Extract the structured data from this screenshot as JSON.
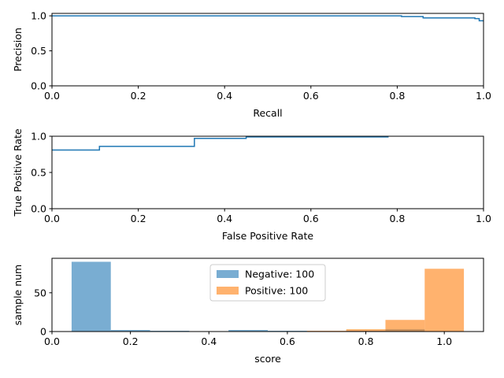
{
  "chart_data": [
    {
      "type": "line",
      "xlabel": "Recall",
      "ylabel": "Precision",
      "color": "#1f77b4",
      "x": [
        0,
        0.81,
        0.81,
        0.86,
        0.86,
        0.98,
        0.98,
        0.99,
        0.99,
        1.0
      ],
      "values": [
        1,
        1,
        0.99,
        0.99,
        0.97,
        0.97,
        0.96,
        0.96,
        0.93,
        0.93
      ],
      "xlim": [
        0,
        1
      ],
      "ylim": [
        0,
        1.035
      ],
      "xticks": [
        {
          "value": 0,
          "label": "0.0"
        },
        {
          "value": 0.2,
          "label": "0.2"
        },
        {
          "value": 0.4,
          "label": "0.4"
        },
        {
          "value": 0.6,
          "label": "0.6"
        },
        {
          "value": 0.8,
          "label": "0.8"
        },
        {
          "value": 1,
          "label": "1.0"
        }
      ],
      "yticks": [
        {
          "value": 0,
          "label": "0.0"
        },
        {
          "value": 0.5,
          "label": "0.5"
        },
        {
          "value": 1,
          "label": "1.0"
        }
      ]
    },
    {
      "type": "line",
      "xlabel": "False Positive Rate",
      "ylabel": "True Positive Rate",
      "color": "#1f77b4",
      "x": [
        0,
        0.11,
        0.11,
        0.33,
        0.33,
        0.45,
        0.45,
        0.78
      ],
      "values": [
        0.81,
        0.81,
        0.86,
        0.86,
        0.97,
        0.97,
        0.99,
        0.99
      ],
      "xlim": [
        0,
        1
      ],
      "ylim": [
        0,
        1
      ],
      "xticks": [
        {
          "value": 0,
          "label": "0.0"
        },
        {
          "value": 0.2,
          "label": "0.2"
        },
        {
          "value": 0.4,
          "label": "0.4"
        },
        {
          "value": 0.6,
          "label": "0.6"
        },
        {
          "value": 0.8,
          "label": "0.8"
        },
        {
          "value": 1,
          "label": "1.0"
        }
      ],
      "yticks": [
        {
          "value": 0,
          "label": "0.0"
        },
        {
          "value": 0.5,
          "label": "0.5"
        },
        {
          "value": 1,
          "label": "1.0"
        }
      ]
    },
    {
      "type": "histogram",
      "xlabel": "score",
      "ylabel": "sample num",
      "legend": "upper center",
      "bins": [
        0.05,
        0.15,
        0.25,
        0.35,
        0.45,
        0.55,
        0.65,
        0.75,
        0.85,
        0.95,
        1.05
      ],
      "series": [
        {
          "name": "Negative: 100",
          "color": "#1f77b4",
          "values": [
            90,
            2,
            1,
            0,
            2,
            1,
            0,
            1,
            3,
            0
          ]
        },
        {
          "name": "Positive: 100",
          "color": "#ff7f0e",
          "values": [
            0,
            0,
            0,
            0,
            0,
            0,
            1,
            3,
            15,
            81
          ]
        }
      ],
      "xlim": [
        0,
        1.1
      ],
      "ylim": [
        0,
        94.5
      ],
      "xticks": [
        {
          "value": 0,
          "label": "0.0"
        },
        {
          "value": 0.2,
          "label": "0.2"
        },
        {
          "value": 0.4,
          "label": "0.4"
        },
        {
          "value": 0.6,
          "label": "0.6"
        },
        {
          "value": 0.8,
          "label": "0.8"
        },
        {
          "value": 1,
          "label": "1.0"
        }
      ],
      "yticks": [
        0,
        50
      ]
    }
  ]
}
